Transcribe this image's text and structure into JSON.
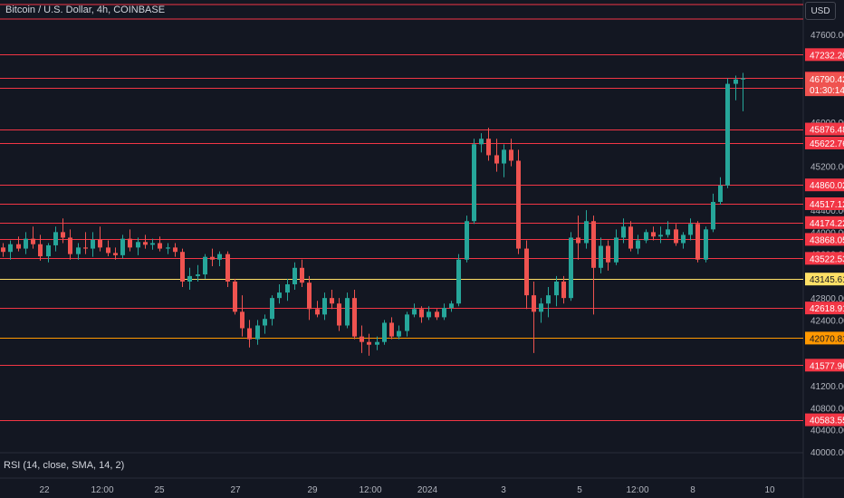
{
  "header": {
    "title": "Bitcoin / U.S. Dollar, 4h, COINBASE",
    "currency_button": "USD"
  },
  "indicator": {
    "rsi_label": "RSI (14, close, SMA, 14, 2)"
  },
  "colors": {
    "background": "#131722",
    "up": "#26a69a",
    "down": "#ef5350",
    "level_line": "#f23645",
    "yellow_line": "#ffe066",
    "orange_line": "#ff9800"
  },
  "chart_data": {
    "type": "candlestick",
    "title": "Bitcoin / U.S. Dollar, 4h, COINBASE",
    "ylim": [
      40000,
      48000
    ],
    "y_ticks": [
      "47600.00",
      "46000.00",
      "45200.00",
      "44400.00",
      "44000.00",
      "43600.00",
      "42800.00",
      "42400.00",
      "41200.00",
      "40800.00",
      "40400.00",
      "40000.00"
    ],
    "x_ticks": [
      "22",
      "12:00",
      "25",
      "27",
      "29",
      "12:00",
      "2024",
      "3",
      "5",
      "12:00",
      "8",
      "10"
    ],
    "grid": false,
    "levels": [
      {
        "price": 47232.2,
        "label": "47232.20",
        "style": "red"
      },
      {
        "price": 46805.12,
        "label": "46805.12",
        "style": "red"
      },
      {
        "price": 46623.25,
        "label": "46623.25",
        "style": "red"
      },
      {
        "price": 45876.48,
        "label": "45876.48",
        "style": "red"
      },
      {
        "price": 45622.76,
        "label": "45622.76",
        "style": "red"
      },
      {
        "price": 44860.02,
        "label": "44860.02",
        "style": "red"
      },
      {
        "price": 44517.12,
        "label": "44517.12",
        "style": "red"
      },
      {
        "price": 44174.22,
        "label": "44174.22",
        "style": "red"
      },
      {
        "price": 43868.05,
        "label": "43868.05",
        "style": "red"
      },
      {
        "price": 43522.53,
        "label": "43522.53",
        "style": "red"
      },
      {
        "price": 43145.61,
        "label": "43145.61",
        "style": "yellow"
      },
      {
        "price": 42618.91,
        "label": "42618.91",
        "style": "red"
      },
      {
        "price": 42070.81,
        "label": "42070.81",
        "style": "orange"
      },
      {
        "price": 41577.96,
        "label": "41577.96",
        "style": "red"
      },
      {
        "price": 40583.55,
        "label": "40583.55",
        "style": "red"
      }
    ],
    "current_price": {
      "price": 46790.42,
      "label": "46790.42",
      "countdown": "01:30:14"
    },
    "candles": [
      [
        43720,
        43800,
        43550,
        43640
      ],
      [
        43640,
        43850,
        43500,
        43780
      ],
      [
        43780,
        43920,
        43650,
        43700
      ],
      [
        43700,
        44000,
        43600,
        43880
      ],
      [
        43880,
        44100,
        43700,
        43780
      ],
      [
        43780,
        43950,
        43480,
        43560
      ],
      [
        43560,
        43800,
        43450,
        43760
      ],
      [
        43760,
        44100,
        43650,
        44000
      ],
      [
        44000,
        44250,
        43800,
        43900
      ],
      [
        43900,
        44050,
        43500,
        43600
      ],
      [
        43600,
        43800,
        43500,
        43720
      ],
      [
        43720,
        44000,
        43600,
        43700
      ],
      [
        43700,
        44000,
        43550,
        43860
      ],
      [
        43860,
        44100,
        43650,
        43720
      ],
      [
        43720,
        43850,
        43560,
        43620
      ],
      [
        43620,
        43720,
        43500,
        43580
      ],
      [
        43580,
        43950,
        43520,
        43880
      ],
      [
        43880,
        44050,
        43650,
        43720
      ],
      [
        43720,
        43900,
        43580,
        43820
      ],
      [
        43820,
        43950,
        43700,
        43770
      ],
      [
        43770,
        43880,
        43680,
        43800
      ],
      [
        43800,
        43920,
        43650,
        43700
      ],
      [
        43700,
        43800,
        43600,
        43720
      ],
      [
        43720,
        43800,
        43550,
        43640
      ],
      [
        43640,
        43700,
        43000,
        43100
      ],
      [
        43100,
        43350,
        42950,
        43200
      ],
      [
        43200,
        43400,
        43100,
        43230
      ],
      [
        43230,
        43600,
        43150,
        43550
      ],
      [
        43550,
        43700,
        43380,
        43500
      ],
      [
        43500,
        43650,
        43380,
        43600
      ],
      [
        43600,
        43650,
        43000,
        43100
      ],
      [
        43100,
        43150,
        42500,
        42550
      ],
      [
        42550,
        42850,
        42100,
        42250
      ],
      [
        42250,
        42400,
        41900,
        42050
      ],
      [
        42050,
        42400,
        41950,
        42300
      ],
      [
        42300,
        42500,
        42150,
        42420
      ],
      [
        42420,
        42850,
        42300,
        42800
      ],
      [
        42800,
        43050,
        42700,
        42900
      ],
      [
        42900,
        43150,
        42750,
        43050
      ],
      [
        43050,
        43450,
        42950,
        43350
      ],
      [
        43350,
        43500,
        43000,
        43080
      ],
      [
        43080,
        43200,
        42400,
        42600
      ],
      [
        42600,
        42750,
        42450,
        42500
      ],
      [
        42500,
        42900,
        42400,
        42800
      ],
      [
        42800,
        42950,
        42600,
        42700
      ],
      [
        42700,
        42800,
        42200,
        42300
      ],
      [
        42300,
        42900,
        42250,
        42800
      ],
      [
        42800,
        42950,
        42050,
        42100
      ],
      [
        42100,
        42300,
        41800,
        42000
      ],
      [
        42000,
        42150,
        41750,
        41950
      ],
      [
        41950,
        42100,
        41850,
        42000
      ],
      [
        42000,
        42400,
        41950,
        42350
      ],
      [
        42350,
        42450,
        42050,
        42100
      ],
      [
        42100,
        42300,
        42050,
        42200
      ],
      [
        42200,
        42550,
        42100,
        42500
      ],
      [
        42500,
        42700,
        42450,
        42600
      ],
      [
        42600,
        42650,
        42350,
        42450
      ],
      [
        42450,
        42650,
        42400,
        42550
      ],
      [
        42550,
        42600,
        42400,
        42450
      ],
      [
        42450,
        42700,
        42400,
        42620
      ],
      [
        42620,
        42750,
        42550,
        42700
      ],
      [
        42700,
        43600,
        42650,
        43500
      ],
      [
        43500,
        44300,
        43450,
        44200
      ],
      [
        44200,
        45700,
        44150,
        45600
      ],
      [
        45600,
        45800,
        45450,
        45700
      ],
      [
        45700,
        45900,
        45300,
        45400
      ],
      [
        45400,
        45700,
        45100,
        45250
      ],
      [
        45250,
        45600,
        45000,
        45500
      ],
      [
        45500,
        45700,
        45200,
        45300
      ],
      [
        45300,
        45500,
        43600,
        43700
      ],
      [
        43700,
        43850,
        42600,
        42850
      ],
      [
        42850,
        43100,
        41800,
        42550
      ],
      [
        42550,
        42800,
        42350,
        42700
      ],
      [
        42700,
        43000,
        42450,
        42850
      ],
      [
        42850,
        43200,
        42650,
        43100
      ],
      [
        43100,
        43200,
        42700,
        42800
      ],
      [
        42800,
        44000,
        42750,
        43900
      ],
      [
        43900,
        44300,
        43500,
        43800
      ],
      [
        43800,
        44400,
        43700,
        44200
      ],
      [
        44200,
        44300,
        42500,
        43350
      ],
      [
        43350,
        43900,
        43250,
        43750
      ],
      [
        43750,
        43850,
        43300,
        43450
      ],
      [
        43450,
        44050,
        43400,
        43900
      ],
      [
        43900,
        44250,
        43800,
        44100
      ],
      [
        44100,
        44200,
        43650,
        43700
      ],
      [
        43700,
        43950,
        43600,
        43850
      ],
      [
        43850,
        44050,
        43800,
        44000
      ],
      [
        44000,
        44100,
        43850,
        43920
      ],
      [
        43920,
        44100,
        43800,
        43950
      ],
      [
        43950,
        44200,
        43900,
        44050
      ],
      [
        44050,
        44150,
        43750,
        43800
      ],
      [
        43800,
        44000,
        43700,
        43950
      ],
      [
        43950,
        44250,
        43850,
        44150
      ],
      [
        44150,
        44200,
        43450,
        43500
      ],
      [
        43500,
        44100,
        43450,
        44050
      ],
      [
        44050,
        44700,
        44000,
        44550
      ],
      [
        44550,
        45000,
        44500,
        44850
      ],
      [
        44850,
        46800,
        44800,
        46700
      ],
      [
        46700,
        46850,
        46400,
        46780
      ],
      [
        46780,
        46900,
        46200,
        46800
      ]
    ]
  }
}
